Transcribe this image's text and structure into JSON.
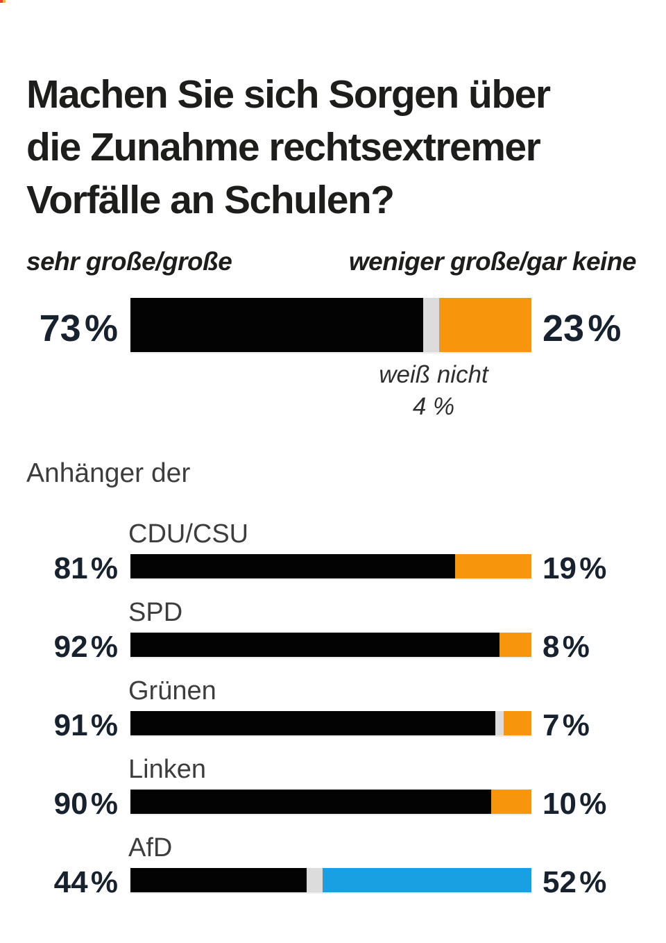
{
  "title": {
    "text": "Machen Sie sich Sorgen über\ndie Zunahme rechtsextremer\nVorfälle an Schulen?"
  },
  "legend": {
    "left": "sehr große/große",
    "right": "weniger große/gar keine"
  },
  "colors": {
    "worried_black": "#030303",
    "dont_know_gray": "#dcdcdc",
    "not_worried_orange": "#f7960d",
    "afd_blue": "#18a0e2",
    "pct_text": "#18222e"
  },
  "overall_bar": {
    "left_label": "73 %",
    "right_label": "23 %",
    "segments": [
      {
        "name": "sehr große/große",
        "value": 73,
        "color": "#030303"
      },
      {
        "name": "weiß nicht",
        "value": 4,
        "color": "#dcdcdc"
      },
      {
        "name": "weniger große/gar keine",
        "value": 23,
        "color": "#f7960d"
      }
    ],
    "annotation": {
      "line1": "weiß nicht",
      "line2": "4 %"
    }
  },
  "groups": {
    "heading": "Anhänger der",
    "rows": [
      {
        "party": "CDU/CSU",
        "left_label": "81 %",
        "right_label": "19 %",
        "segments": [
          {
            "name": "sehr große/große",
            "value": 81,
            "color": "#030303"
          },
          {
            "name": "weniger große/gar keine",
            "value": 19,
            "color": "#f7960d"
          }
        ]
      },
      {
        "party": "SPD",
        "left_label": "92 %",
        "right_label": "8 %",
        "segments": [
          {
            "name": "sehr große/große",
            "value": 92,
            "color": "#030303"
          },
          {
            "name": "weniger große/gar keine",
            "value": 8,
            "color": "#f7960d"
          }
        ]
      },
      {
        "party": "Grünen",
        "left_label": "91 %",
        "right_label": "7 %",
        "segments": [
          {
            "name": "sehr große/große",
            "value": 91,
            "color": "#030303"
          },
          {
            "name": "weiß nicht",
            "value": 2,
            "color": "#dcdcdc"
          },
          {
            "name": "weniger große/gar keine",
            "value": 7,
            "color": "#f7960d"
          }
        ]
      },
      {
        "party": "Linken",
        "left_label": "90 %",
        "right_label": "10 %",
        "segments": [
          {
            "name": "sehr große/große",
            "value": 90,
            "color": "#030303"
          },
          {
            "name": "weniger große/gar keine",
            "value": 10,
            "color": "#f7960d"
          }
        ]
      },
      {
        "party": "AfD",
        "left_label": "44 %",
        "right_label": "52 %",
        "segments": [
          {
            "name": "sehr große/große",
            "value": 44,
            "color": "#030303"
          },
          {
            "name": "weiß nicht",
            "value": 4,
            "color": "#dcdcdc"
          },
          {
            "name": "weniger große/gar keine",
            "value": 52,
            "color": "#18a0e2"
          }
        ]
      }
    ]
  },
  "chart_data": {
    "type": "bar",
    "orientation": "horizontal-stacked",
    "title": "Machen Sie sich Sorgen über die Zunahme rechtsextremer Vorfälle an Schulen?",
    "legend_entries": [
      "sehr große/große",
      "weiß nicht",
      "weniger große/gar keine"
    ],
    "unit": "%",
    "xlim": [
      0,
      100
    ],
    "overall": {
      "sehr_grosse_grosse": 73,
      "weiss_nicht": 4,
      "weniger_grosse_gar_keine": 23
    },
    "groups_label": "Anhänger der",
    "categories": [
      "CDU/CSU",
      "SPD",
      "Grünen",
      "Linken",
      "AfD"
    ],
    "series": [
      {
        "name": "sehr große/große",
        "values": [
          81,
          92,
          91,
          90,
          44
        ]
      },
      {
        "name": "weiß nicht",
        "values": [
          0,
          0,
          2,
          0,
          4
        ]
      },
      {
        "name": "weniger große/gar keine",
        "values": [
          19,
          8,
          7,
          10,
          52
        ]
      }
    ],
    "notes": "AfD 'weniger große/gar keine' segment is blue (#18a0e2); all others orange (#f7960d)"
  }
}
